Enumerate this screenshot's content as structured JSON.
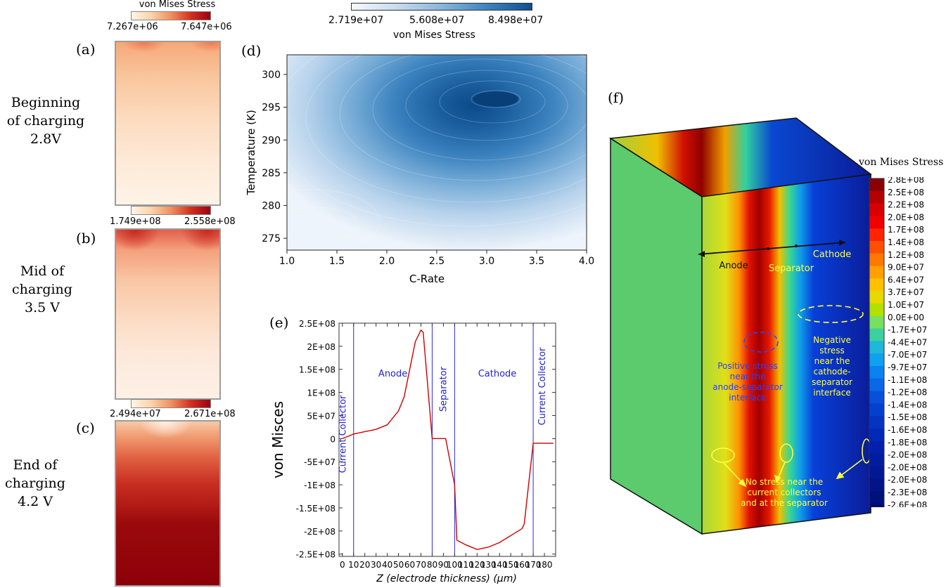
{
  "panels": {
    "a": {
      "letter": "(a)",
      "state_lines": [
        "Beginning",
        "of charging",
        "2.8V"
      ],
      "colorbar": {
        "title": "von Mises Stress",
        "min": "7.267e+06",
        "max": "7.647e+06"
      }
    },
    "b": {
      "letter": "(b)",
      "state_lines": [
        "Mid of",
        "charging",
        "3.5 V"
      ],
      "colorbar": {
        "min": "1.749e+08",
        "max": "2.558e+08"
      }
    },
    "c": {
      "letter": "(c)",
      "state_lines": [
        "End of",
        "charging",
        "4.2 V"
      ],
      "colorbar": {
        "min": "2.494e+07",
        "max": "2.671e+08"
      }
    },
    "d": {
      "letter": "(d)",
      "colorbar": {
        "title": "von Mises Stress",
        "ticks": [
          "2.719e+07",
          "5.608e+07",
          "8.498e+07"
        ]
      },
      "xlabel": "C-Rate",
      "ylabel": "Temperature (K)",
      "xticks": [
        "1.0",
        "1.5",
        "2.0",
        "2.5",
        "3.0",
        "3.5",
        "4.0"
      ],
      "yticks": [
        "275",
        "280",
        "285",
        "290",
        "295",
        "300"
      ]
    },
    "e": {
      "letter": "(e)",
      "ylabel": "von Misces",
      "xlabel": "Z (electrode thickness) (μm)",
      "region_labels": [
        "Current Collector",
        "Anode",
        "Separator",
        "Cathode",
        "Current Collector"
      ]
    },
    "f": {
      "letter": "(f)",
      "colorbar_title": "von Mises Stress",
      "legend_values": [
        "2.8E+08",
        "2.5E+08",
        "2.2E+08",
        "2.0E+08",
        "1.7E+08",
        "1.4E+08",
        "1.2E+08",
        "9.0E+07",
        "6.4E+07",
        "3.7E+07",
        "1.0E+07",
        "0.0E+00",
        "-1.7E+07",
        "-4.4E+07",
        "-7.0E+07",
        "-9.7E+07",
        "-1.1E+08",
        "-1.2E+08",
        "-1.4E+08",
        "-1.5E+08",
        "-1.6E+08",
        "-1.8E+08",
        "-2.0E+08",
        "-2.0E+08",
        "-2.0E+08",
        "-2.3E+08",
        "-2.6E+08"
      ],
      "legend_colors": [
        "#8b0000",
        "#b50000",
        "#d80000",
        "#f00000",
        "#ff2400",
        "#ff5000",
        "#ff7800",
        "#ffa000",
        "#ffc000",
        "#e6d800",
        "#b4e000",
        "#78e060",
        "#3cd0a0",
        "#1eb8d8",
        "#10a0f0",
        "#0a82f0",
        "#0868e8",
        "#0650dc",
        "#0440d0",
        "#0434c4",
        "#0228b8",
        "#0220ac",
        "#021ca0",
        "#021894",
        "#021488",
        "#02107c",
        "#020c70"
      ],
      "labels": {
        "anode": "Anode",
        "separator": "Separator",
        "cathode": "Cathode",
        "positive": [
          "Positive stress",
          "near the",
          "anode-separator",
          "interface"
        ],
        "negative": [
          "Negative",
          "stress",
          "near the",
          "cathode-",
          "separator",
          "interface"
        ],
        "no_stress": [
          "No stress near the",
          "current collectors",
          "and at the separator"
        ]
      }
    }
  },
  "chart_data": [
    {
      "type": "line",
      "title": "",
      "xlabel": "Z (electrode thickness) (μm)",
      "ylabel": "von Misces",
      "xlim": [
        -3,
        190
      ],
      "ylim": [
        -255000000.0,
        250000000.0
      ],
      "xticks": [
        0,
        10,
        20,
        30,
        40,
        50,
        60,
        70,
        80,
        90,
        100,
        110,
        120,
        130,
        140,
        150,
        160,
        170,
        180
      ],
      "yticks": [
        -250000000.0,
        -200000000.0,
        -150000000.0,
        -100000000.0,
        -50000000.0,
        0,
        50000000.0,
        100000000.0,
        150000000.0,
        200000000.0,
        250000000.0
      ],
      "ytick_labels": [
        "-2.5E+08",
        "-2E+08",
        "-1.5E+08",
        "-1E+08",
        "-5E+07",
        "0",
        "5E+07",
        "1E+08",
        "1.5E+08",
        "2E+08",
        "2.5E+08"
      ],
      "x": [
        0,
        10,
        20,
        30,
        40,
        50,
        55,
        60,
        65,
        70,
        72,
        80,
        82,
        90,
        92,
        100,
        102,
        110,
        120,
        130,
        140,
        150,
        160,
        162,
        170,
        180,
        188
      ],
      "y": [
        0,
        10000000.0,
        15000000.0,
        20000000.0,
        30000000.0,
        60000000.0,
        90000000.0,
        150000000.0,
        210000000.0,
        235000000.0,
        230000000.0,
        0,
        0,
        0,
        0,
        -100000000.0,
        -220000000.0,
        -230000000.0,
        -240000000.0,
        -235000000.0,
        -225000000.0,
        -210000000.0,
        -195000000.0,
        -185000000.0,
        -10000000.0,
        -10000000.0,
        -10000000.0
      ],
      "vlines": [
        10,
        80,
        100,
        170
      ]
    }
  ]
}
